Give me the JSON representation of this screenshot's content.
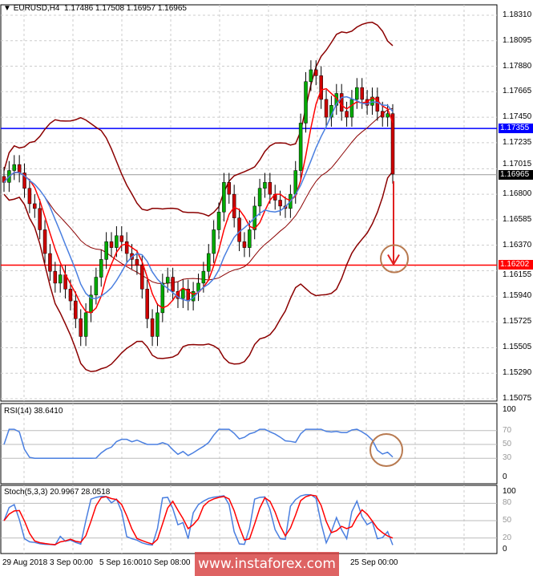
{
  "header": {
    "symbol_menu_icon": "triangle-down-icon",
    "title": "EURUSD,H4",
    "ohlc": "1.17486 1.17508 1.16957 1.16965"
  },
  "price_axis": [
    "1.18310",
    "1.18095",
    "1.17880",
    "1.17665",
    "1.17450",
    "1.17235",
    "1.17015",
    "1.16800",
    "1.16585",
    "1.16370",
    "1.16155",
    "1.15940",
    "1.15725",
    "1.15505",
    "1.15290",
    "1.15075"
  ],
  "levels": {
    "blue": {
      "value": "1.17355",
      "color": "#0000ff"
    },
    "current": {
      "value": "1.16965",
      "color": "#000000"
    },
    "red": {
      "value": "1.16202",
      "color": "#ff0000"
    }
  },
  "rsi": {
    "label": "RSI(14) 38.6410",
    "axis": [
      "100",
      "70",
      "50",
      "30",
      "0"
    ]
  },
  "stoch": {
    "label": "Stoch(5,3,3) 20.9967 28.0518",
    "axis": [
      "100",
      "80",
      "50",
      "20",
      "0"
    ]
  },
  "time_axis": [
    "29 Aug 2018",
    "3 Sep 00:00",
    "5 Sep 16:00",
    "10 Sep 08:00",
    "25 Sep 00:00"
  ],
  "watermark": "www.instaforex.com",
  "colors": {
    "bull": "#00aa00",
    "bear": "#cc0000",
    "ma_fast": "#ff0000",
    "ma_slow": "#4a7fe0",
    "bands": "#8b0000",
    "annotation": "#b87a50"
  },
  "chart_data": {
    "type": "candlestick",
    "symbol": "EURUSD",
    "timeframe": "H4",
    "ylim": [
      1.15075,
      1.1831
    ],
    "close": [
      1.169,
      1.17,
      1.1705,
      1.1698,
      1.1685,
      1.1672,
      1.1668,
      1.165,
      1.163,
      1.1615,
      1.1605,
      1.1612,
      1.16,
      1.159,
      1.1575,
      1.156,
      1.158,
      1.1595,
      1.161,
      1.1625,
      1.164,
      1.1635,
      1.1645,
      1.164,
      1.163,
      1.1625,
      1.162,
      1.16,
      1.1575,
      1.156,
      1.158,
      1.1605,
      1.161,
      1.1598,
      1.1592,
      1.16,
      1.159,
      1.1598,
      1.1605,
      1.1615,
      1.163,
      1.165,
      1.1665,
      1.169,
      1.168,
      1.166,
      1.164,
      1.1635,
      1.165,
      1.167,
      1.1685,
      1.169,
      1.168,
      1.1675,
      1.167,
      1.1668,
      1.168,
      1.17,
      1.174,
      1.1775,
      1.1785,
      1.178,
      1.176,
      1.1745,
      1.1755,
      1.1765,
      1.175,
      1.1745,
      1.176,
      1.177,
      1.176,
      1.1755,
      1.1762,
      1.175,
      1.1745,
      1.1748,
      1.1697
    ]
  }
}
